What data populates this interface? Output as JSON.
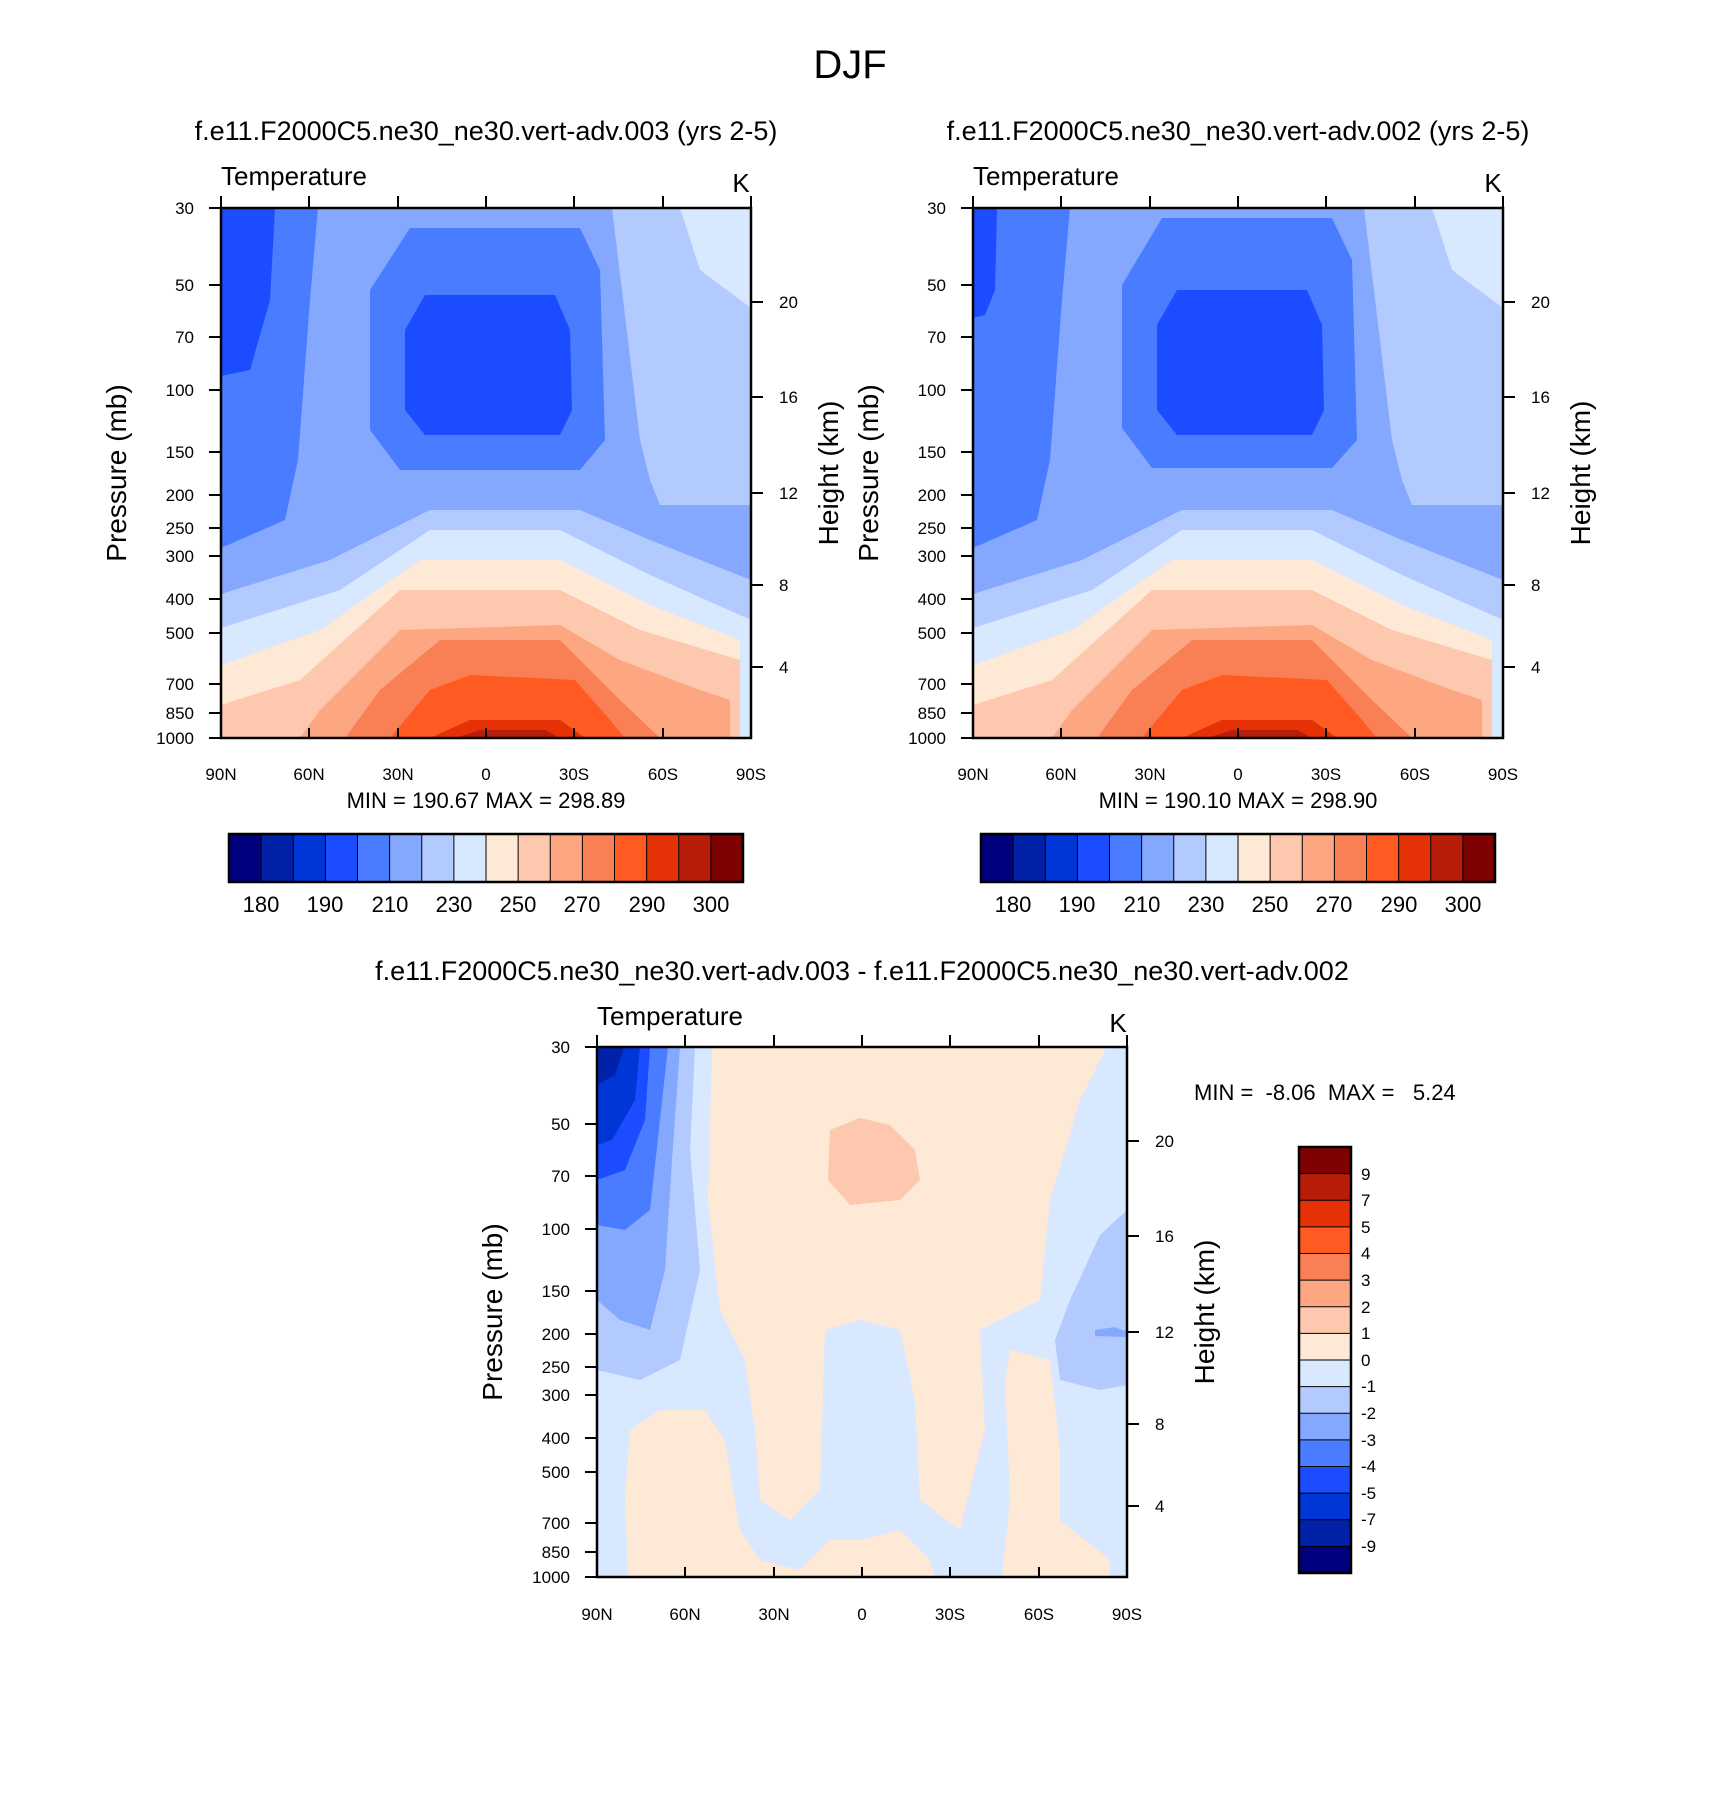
{
  "page_title": "DJF",
  "colors": {
    "abs_levels": [
      "#00007f",
      "#0021a8",
      "#0036d6",
      "#1b4cff",
      "#4a7cff",
      "#85a8ff",
      "#b3caff",
      "#d8e8ff",
      "#fde9d6",
      "#fdc8ad",
      "#fca781",
      "#f98054",
      "#ff5a21",
      "#e43105",
      "#b71d09",
      "#7e0102"
    ],
    "diff_levels": [
      "#7e0102",
      "#b71d09",
      "#e43105",
      "#ff5a21",
      "#f98054",
      "#fca781",
      "#fdc8ad",
      "#fde9d6",
      "#d8e8ff",
      "#b3caff",
      "#85a8ff",
      "#4a7cff",
      "#1b4cff",
      "#0036d6",
      "#0021a8",
      "#00007f"
    ]
  },
  "chart_data": [
    {
      "type": "contour",
      "title": "f.e11.F2000C5.ne30_ne30.vert-adv.003 (yrs 2-5)",
      "left_label": "Temperature",
      "units": "K",
      "ylabel": "Pressure (mb)",
      "y2label": "Height (km)",
      "x_ticks": [
        "90N",
        "60N",
        "30N",
        "0",
        "30S",
        "60S",
        "90S"
      ],
      "y_ticks": [
        "30",
        "50",
        "70",
        "100",
        "150",
        "200",
        "250",
        "300",
        "400",
        "500",
        "700",
        "850",
        "1000"
      ],
      "y2_ticks": [
        "20",
        "16",
        "12",
        "8",
        "4"
      ],
      "stats": "MIN = 190.67  MAX = 298.89",
      "colorbar_labels": [
        "180",
        "190",
        "210",
        "230",
        "250",
        "270",
        "290",
        "300"
      ],
      "min": 190.67,
      "max": 298.89
    },
    {
      "type": "contour",
      "title": "f.e11.F2000C5.ne30_ne30.vert-adv.002 (yrs 2-5)",
      "left_label": "Temperature",
      "units": "K",
      "ylabel": "Pressure (mb)",
      "y2label": "Height (km)",
      "x_ticks": [
        "90N",
        "60N",
        "30N",
        "0",
        "30S",
        "60S",
        "90S"
      ],
      "y_ticks": [
        "30",
        "50",
        "70",
        "100",
        "150",
        "200",
        "250",
        "300",
        "400",
        "500",
        "700",
        "850",
        "1000"
      ],
      "y2_ticks": [
        "20",
        "16",
        "12",
        "8",
        "4"
      ],
      "stats": "MIN = 190.10  MAX = 298.90",
      "colorbar_labels": [
        "180",
        "190",
        "210",
        "230",
        "250",
        "270",
        "290",
        "300"
      ],
      "min": 190.1,
      "max": 298.9
    },
    {
      "type": "contour",
      "title": "f.e11.F2000C5.ne30_ne30.vert-adv.003 - f.e11.F2000C5.ne30_ne30.vert-adv.002",
      "left_label": "Temperature",
      "units": "K",
      "ylabel": "Pressure (mb)",
      "y2label": "Height (km)",
      "x_ticks": [
        "90N",
        "60N",
        "30N",
        "0",
        "30S",
        "60S",
        "90S"
      ],
      "y_ticks": [
        "30",
        "50",
        "70",
        "100",
        "150",
        "200",
        "250",
        "300",
        "400",
        "500",
        "700",
        "850",
        "1000"
      ],
      "y2_ticks": [
        "20",
        "16",
        "12",
        "8",
        "4"
      ],
      "stats": "MIN =  -8.06  MAX =   5.24",
      "colorbar_labels": [
        "9",
        "7",
        "5",
        "4",
        "3",
        "2",
        "1",
        "0",
        "-1",
        "-2",
        "-3",
        "-4",
        "-5",
        "-7",
        "-9"
      ],
      "min": -8.06,
      "max": 5.24
    }
  ]
}
